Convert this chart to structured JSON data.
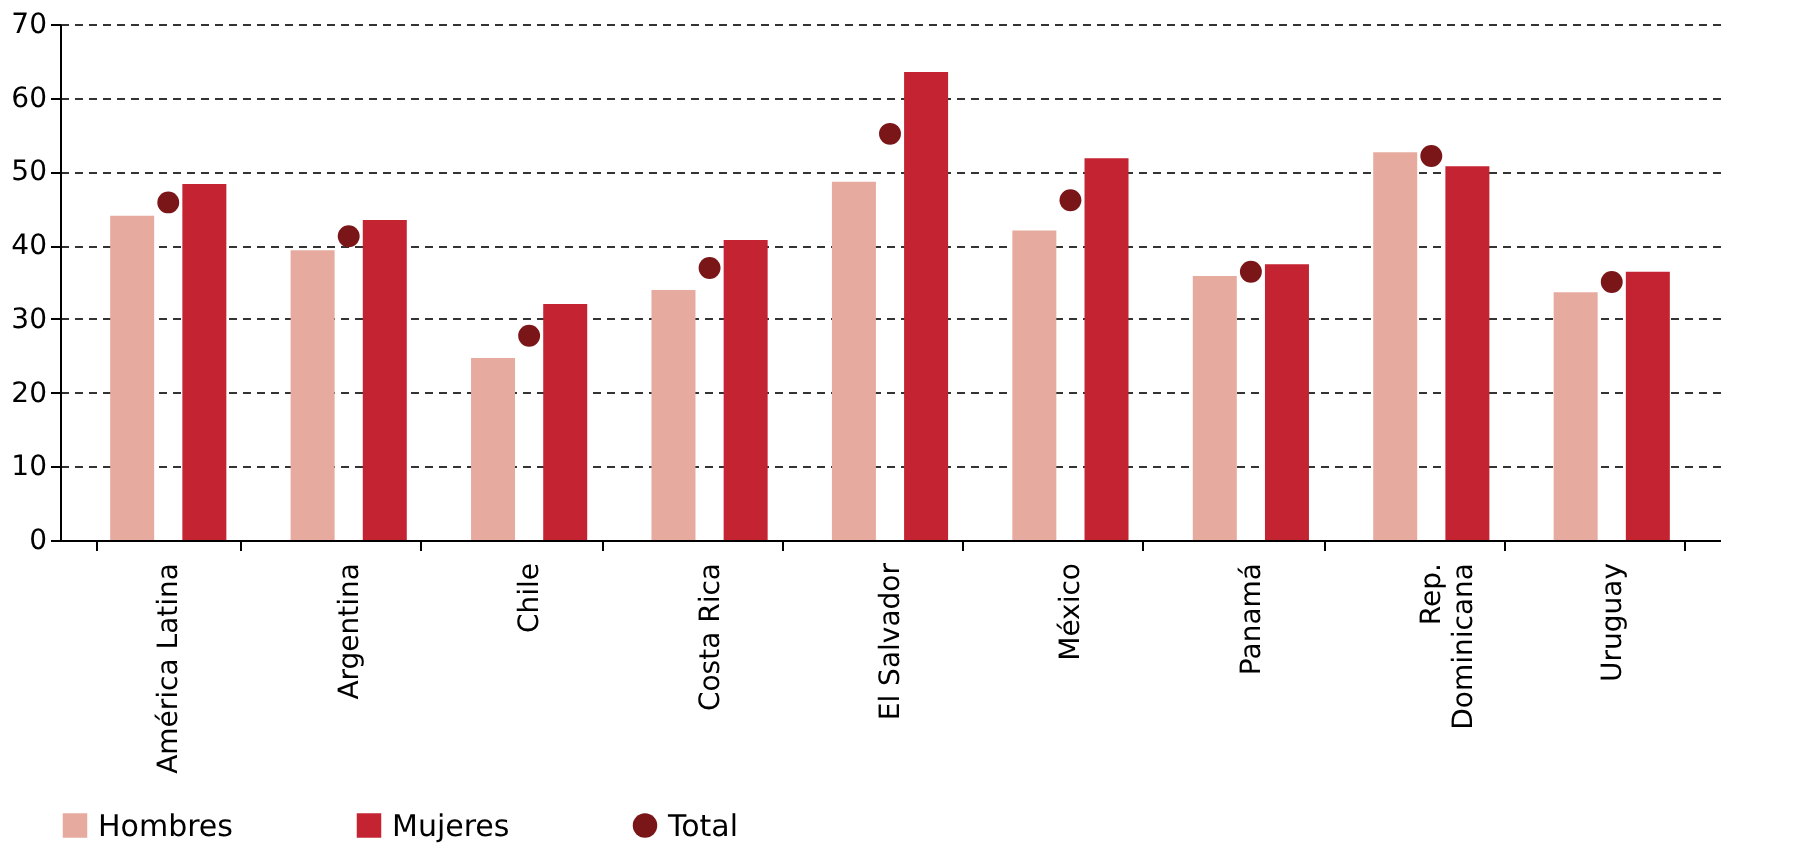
{
  "chart_data": {
    "type": "bar",
    "categories": [
      "América Latina",
      "Argentina",
      "Chile",
      "Costa Rica",
      "El Salvador",
      "México",
      "Panamá",
      "Rep.\nDominicana",
      "Uruguay"
    ],
    "series": [
      {
        "name": "Hombres",
        "color": "#e6aa9f",
        "values": [
          44,
          39.3,
          24.7,
          33.9,
          48.6,
          42,
          35.8,
          52.6,
          33.6
        ]
      },
      {
        "name": "Mujeres",
        "color": "#c42332",
        "values": [
          48.3,
          43.4,
          32,
          40.7,
          63.5,
          51.8,
          37.4,
          50.7,
          36.4
        ]
      },
      {
        "name": "Total",
        "type": "scatter",
        "marker": "circle",
        "color": "#7a1518",
        "values": [
          45.8,
          41.2,
          27.7,
          36.9,
          55.1,
          46.1,
          36.4,
          52.1,
          35
        ]
      }
    ],
    "ylim": [
      0,
      70
    ],
    "yticks": [
      0,
      10,
      20,
      30,
      40,
      50,
      60,
      70
    ],
    "grid": "y",
    "legend": "bottom"
  }
}
